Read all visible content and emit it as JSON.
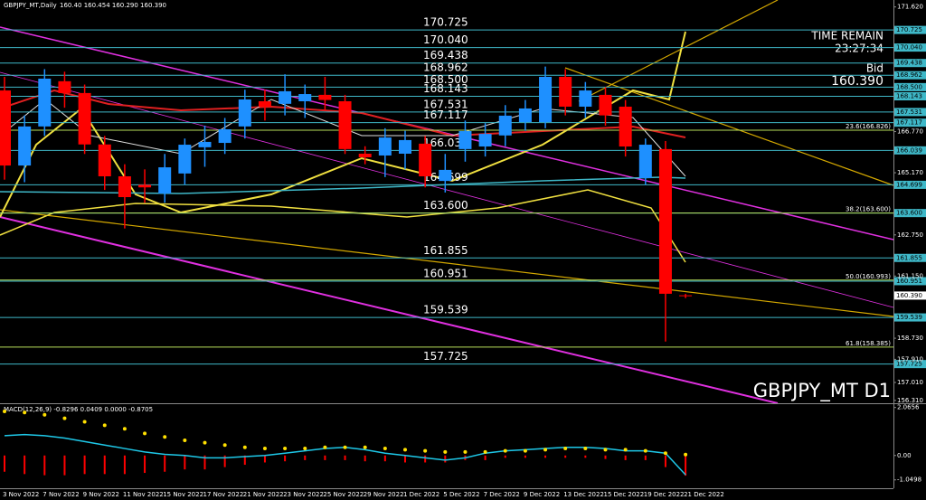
{
  "chart_data": [
    {
      "type": "candlestick",
      "title": "GBPJPY_MT,Daily",
      "subtitle": "160.40 160.454 160.290 160.390",
      "watermark": "GBPJPY_MT D1",
      "info": [
        "TIME REMAIN",
        "23:27:34",
        "Bid",
        "160.390"
      ],
      "up_color": "#1e90ff",
      "down_color": "#ff0000",
      "level_color": "#3fb8c8",
      "fib_color": "#b8e05a",
      "categories": [
        "3 Nov 2022",
        null,
        "7 Nov 2022",
        null,
        "9 Nov 2022",
        null,
        "11 Nov 2022",
        null,
        "15 Nov 2022",
        null,
        "17 Nov 2022",
        null,
        "21 Nov 2022",
        null,
        "23 Nov 2022",
        null,
        "25 Nov 2022",
        null,
        "29 Nov 2022",
        null,
        "1 Dec 2022",
        null,
        "5 Dec 2022",
        null,
        "7 Dec 2022",
        null,
        "9 Dec 2022",
        null,
        "13 Dec 2022",
        null,
        "15 Dec 2022",
        null,
        "19 Dec 2022",
        null,
        "21 Dec 2022"
      ],
      "open": [
        168.37,
        165.45,
        166.97,
        168.73,
        168.27,
        166.27,
        165.03,
        164.7,
        164.36,
        165.14,
        166.16,
        166.33,
        166.97,
        167.95,
        167.85,
        167.95,
        168.2,
        167.95,
        165.91,
        165.84,
        165.91,
        166.3,
        164.85,
        166.09,
        166.19,
        166.62,
        167.14,
        167.14,
        168.9,
        167.74,
        168.2,
        167.74,
        164.96,
        166.09,
        160.4
      ],
      "high": [
        168.9,
        167.4,
        169.2,
        169.1,
        168.6,
        166.6,
        165.5,
        165.3,
        165.9,
        166.5,
        167.0,
        167.3,
        168.4,
        168.4,
        169.0,
        168.6,
        168.9,
        168.2,
        166.2,
        166.9,
        166.8,
        166.6,
        165.9,
        167.2,
        167.1,
        167.8,
        168.0,
        169.3,
        169.2,
        168.7,
        168.5,
        168.0,
        166.5,
        166.4,
        160.454
      ],
      "low": [
        164.9,
        164.8,
        166.6,
        167.7,
        165.9,
        164.5,
        163.0,
        164.0,
        164.0,
        164.7,
        165.4,
        165.9,
        166.5,
        167.2,
        167.4,
        167.3,
        167.6,
        165.9,
        165.5,
        165.0,
        165.3,
        164.6,
        164.4,
        165.6,
        165.8,
        166.2,
        166.8,
        166.9,
        167.4,
        167.3,
        167.0,
        165.8,
        164.7,
        158.6,
        160.29
      ],
      "close": [
        165.45,
        166.97,
        168.83,
        168.27,
        166.27,
        165.03,
        164.22,
        164.6,
        165.38,
        166.26,
        166.37,
        166.86,
        168.02,
        167.74,
        168.34,
        168.23,
        168.0,
        166.09,
        165.77,
        166.54,
        166.44,
        165.03,
        165.28,
        166.79,
        166.68,
        167.39,
        167.67,
        168.9,
        167.74,
        168.37,
        167.4,
        166.19,
        166.26,
        160.46,
        160.39
      ],
      "levels": [
        {
          "value": 170.725,
          "label": "170.725"
        },
        {
          "value": 170.04,
          "label": "170.040"
        },
        {
          "value": 169.438,
          "label": "169.438"
        },
        {
          "value": 168.962,
          "label": "168.962"
        },
        {
          "value": 168.5,
          "label": "168.500"
        },
        {
          "value": 168.143,
          "label": "168.143"
        },
        {
          "value": 167.531,
          "label": "167.531"
        },
        {
          "value": 167.117,
          "label": "167.117"
        },
        {
          "value": 166.039,
          "label": "166.039"
        },
        {
          "value": 164.699,
          "label": "164.699"
        },
        {
          "value": 163.6,
          "label": "163.600"
        },
        {
          "value": 161.855,
          "label": "161.855"
        },
        {
          "value": 160.951,
          "label": "160.951"
        },
        {
          "value": 159.539,
          "label": "159.539"
        },
        {
          "value": 157.725,
          "label": "157.725"
        }
      ],
      "fib_levels": [
        {
          "value": 166.826,
          "label": "23.6(166.826)"
        },
        {
          "value": 163.6,
          "label": "38.2(163.600)"
        },
        {
          "value": 160.993,
          "label": "50.0(160.993)"
        },
        {
          "value": 158.385,
          "label": "61.8(158.385)"
        }
      ],
      "bid": {
        "value": 160.39,
        "label": "160.390"
      },
      "ylim": [
        156.2,
        171.89
      ],
      "yticks": [
        {
          "value": 171.62,
          "label": "171.620"
        },
        {
          "value": 166.77,
          "label": "166.770"
        },
        {
          "value": 165.17,
          "label": "165.170"
        },
        {
          "value": 162.75,
          "label": "162.750"
        },
        {
          "value": 161.15,
          "label": "161.150"
        },
        {
          "value": 158.73,
          "label": "158.730"
        },
        {
          "value": 157.91,
          "label": "157.910"
        },
        {
          "value": 157.01,
          "label": "157.010"
        },
        {
          "value": 156.31,
          "label": "156.310"
        }
      ]
    },
    {
      "type": "macd",
      "title": "MACD(12,26,9) -0.8296 0.0409 0.0000 -0.8705",
      "ylim": [
        -1.41,
        2.17
      ],
      "yticks": [
        {
          "value": 2.0656,
          "label": "2.0656"
        },
        {
          "value": 0,
          "label": "0.00"
        },
        {
          "value": -1.0498,
          "label": "-1.0498"
        }
      ],
      "series": [
        {
          "color": "#ff0000",
          "values": [
            -0.7,
            -0.8,
            -0.85,
            -0.85,
            -0.8,
            -0.8,
            -0.8,
            -0.75,
            -0.7,
            -0.6,
            -0.6,
            -0.5,
            -0.4,
            -0.3,
            -0.25,
            -0.2,
            -0.2,
            -0.2,
            -0.25,
            -0.25,
            -0.3,
            -0.3,
            -0.3,
            -0.2,
            -0.2,
            -0.1,
            -0.1,
            -0.1,
            -0.1,
            -0.1,
            -0.15,
            -0.2,
            -0.2,
            -0.5,
            -0.87
          ]
        },
        {
          "color": "#1ec8e8",
          "values": [
            0.85,
            0.9,
            0.85,
            0.75,
            0.6,
            0.45,
            0.3,
            0.15,
            0.05,
            0.0,
            -0.1,
            -0.1,
            -0.05,
            0,
            0.1,
            0.2,
            0.3,
            0.35,
            0.25,
            0.1,
            0,
            -0.1,
            -0.2,
            -0.1,
            0.1,
            0.2,
            0.25,
            0.3,
            0.35,
            0.35,
            0.3,
            0.2,
            0.2,
            0.1,
            -0.83
          ]
        },
        {
          "color": "#ffe000",
          "values": [
            1.9,
            1.85,
            1.75,
            1.6,
            1.45,
            1.3,
            1.15,
            0.95,
            0.8,
            0.65,
            0.55,
            0.45,
            0.35,
            0.3,
            0.3,
            0.3,
            0.35,
            0.35,
            0.35,
            0.3,
            0.25,
            0.2,
            0.15,
            0.15,
            0.15,
            0.2,
            0.2,
            0.25,
            0.3,
            0.3,
            0.25,
            0.25,
            0.2,
            0.1,
            0.04
          ]
        }
      ]
    }
  ]
}
